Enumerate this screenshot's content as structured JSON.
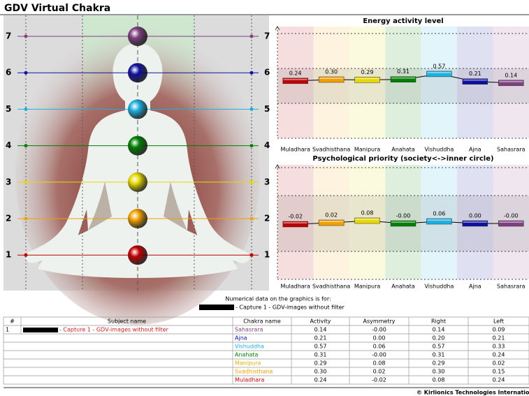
{
  "title": "GDV Virtual Chakra",
  "body_panel": {
    "levels": [
      "7",
      "6",
      "5",
      "4",
      "3",
      "2",
      "1"
    ]
  },
  "chart_data": [
    {
      "type": "line",
      "title": "Energy activity level",
      "categories": [
        "Muladhara",
        "Svadhisthana",
        "Manipura",
        "Anahata",
        "Vishuddha",
        "Ajna",
        "Sahasrara"
      ],
      "values": [
        0.24,
        0.3,
        0.29,
        0.31,
        0.57,
        0.21,
        0.14
      ],
      "value_labels": [
        "0.24",
        "0.30",
        "0.29",
        "0.31",
        "0.57",
        "0.21",
        "0.14"
      ],
      "colors": [
        "#c00000",
        "#f0a000",
        "#e6d800",
        "#008000",
        "#1cb0e0",
        "#1010a0",
        "#804080"
      ],
      "ylim": [
        -2.5,
        2.5
      ]
    },
    {
      "type": "line",
      "title": "Psychological priority (society<->inner circle)",
      "categories": [
        "Muladhara",
        "Svadhisthana",
        "Manipura",
        "Anahata",
        "Vishuddha",
        "Ajna",
        "Sahasrara"
      ],
      "values": [
        -0.02,
        0.02,
        0.08,
        -0.0,
        0.06,
        0.0,
        -0.0
      ],
      "value_labels": [
        "-0.02",
        "0.02",
        "0.08",
        "-0.00",
        "0.06",
        "0.00",
        "-0.00"
      ],
      "colors": [
        "#c00000",
        "#f0a000",
        "#e6d800",
        "#008000",
        "#1cb0e0",
        "#1010a0",
        "#804080"
      ],
      "ylim": [
        -1.6,
        1.6
      ]
    }
  ],
  "note": {
    "text": "Numerical data on the graphics is for:",
    "subject": "- Capture 1 - GDV-images without filter"
  },
  "table": {
    "headers": [
      "#",
      "Subject name",
      "Chakra name",
      "Activity",
      "Asymmetry",
      "Right",
      "Left"
    ],
    "index": "1",
    "subject": "- Capture 1 - GDV-images without filter",
    "rows": [
      [
        "Sahasrara",
        "0.14",
        "-0.00",
        "0.14",
        "0.09"
      ],
      [
        "Ajna",
        "0.21",
        "0.00",
        "0.20",
        "0.21"
      ],
      [
        "Vishuddha",
        "0.57",
        "0.06",
        "0.57",
        "0.33"
      ],
      [
        "Anahata",
        "0.31",
        "-0.00",
        "0.31",
        "0.24"
      ],
      [
        "Manipura",
        "0.29",
        "0.08",
        "0.29",
        "0.02"
      ],
      [
        "Svadhisthana",
        "0.30",
        "0.02",
        "0.30",
        "0.15"
      ],
      [
        "Muladhara",
        "0.24",
        "-0.02",
        "0.08",
        "0.24"
      ]
    ],
    "row_colors": [
      "#804080",
      "#1010a0",
      "#1cb0e0",
      "#008000",
      "#e0b000",
      "#f0a000",
      "#c00000"
    ]
  },
  "footer": "© Kirlionics Technologies Internation"
}
